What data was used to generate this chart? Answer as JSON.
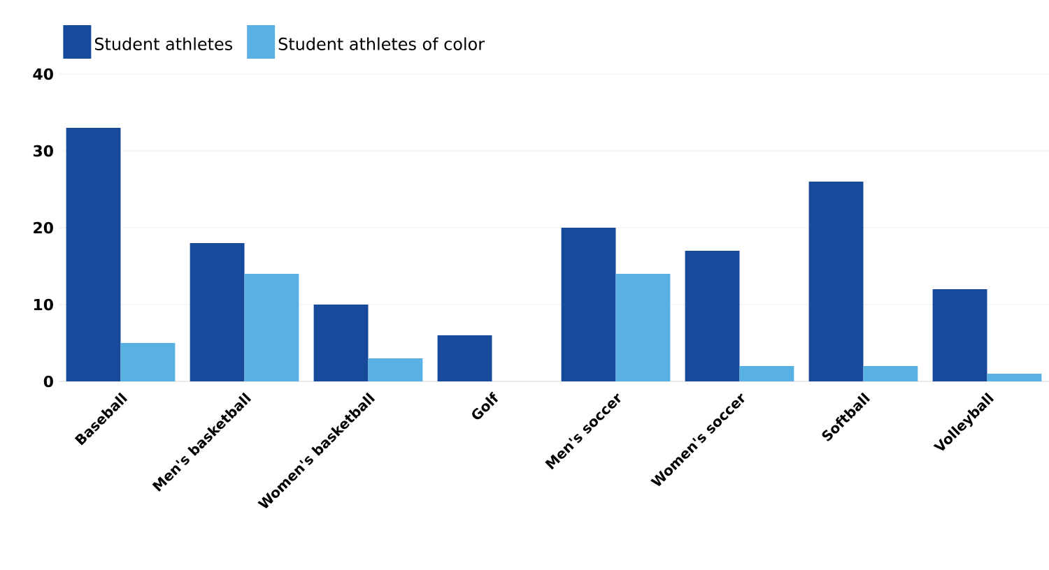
{
  "chart_data": {
    "type": "bar",
    "categories": [
      "Baseball",
      "Men's basketball",
      "Women's basketball",
      "Golf",
      "Men's soccer",
      "Women's soccer",
      "Softball",
      "Volleyball"
    ],
    "series": [
      {
        "name": "Student athletes",
        "color": "#184a9c",
        "values": [
          33,
          18,
          10,
          6,
          20,
          17,
          26,
          12
        ]
      },
      {
        "name": "Student athletes of color",
        "color": "#58b0e3",
        "values": [
          5,
          14,
          3,
          0,
          14,
          2,
          2,
          1
        ]
      }
    ],
    "ylim": [
      0,
      40
    ],
    "yticks": [
      0,
      10,
      20,
      30,
      40
    ],
    "grid": "y",
    "legend": "top left"
  }
}
